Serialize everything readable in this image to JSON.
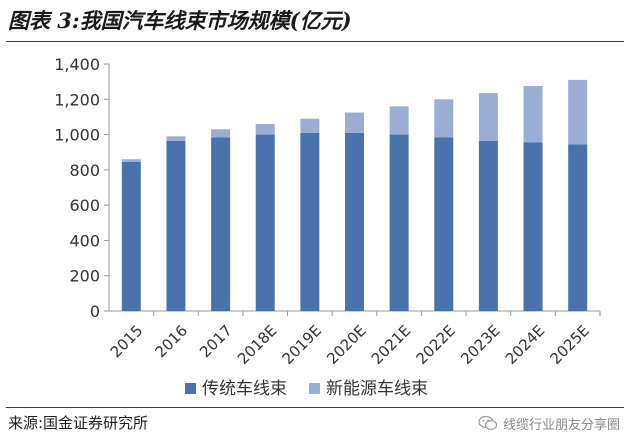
{
  "header": {
    "title": "图表 3:我国汽车线束市场规模(亿元)"
  },
  "chart_data": {
    "type": "bar",
    "stacked": true,
    "categories": [
      "2015",
      "2016",
      "2017",
      "2018E",
      "2019E",
      "2020E",
      "2021E",
      "2022E",
      "2023E",
      "2024E",
      "2025E"
    ],
    "series": [
      {
        "name": "传统车线束",
        "color": "#4a73ad",
        "values": [
          845,
          965,
          985,
          1000,
          1010,
          1010,
          1000,
          985,
          965,
          955,
          945
        ]
      },
      {
        "name": "新能源车线束",
        "color": "#9aaed4",
        "values": [
          15,
          25,
          45,
          60,
          80,
          115,
          160,
          215,
          270,
          320,
          365
        ]
      }
    ],
    "ylim": [
      0,
      1400
    ],
    "yticks": [
      0,
      200,
      400,
      600,
      800,
      1000,
      1200,
      1400
    ],
    "ytick_labels": [
      "0",
      "200",
      "400",
      "600",
      "800",
      "1,000",
      "1,200",
      "1,400"
    ],
    "grid": false,
    "legend": "bottom",
    "xlabel": "",
    "ylabel": ""
  },
  "footer": {
    "source": "来源:国金证券研究所",
    "watermark": "线缆行业朋友分享圈",
    "watermark_icon": "wechat-icon"
  }
}
